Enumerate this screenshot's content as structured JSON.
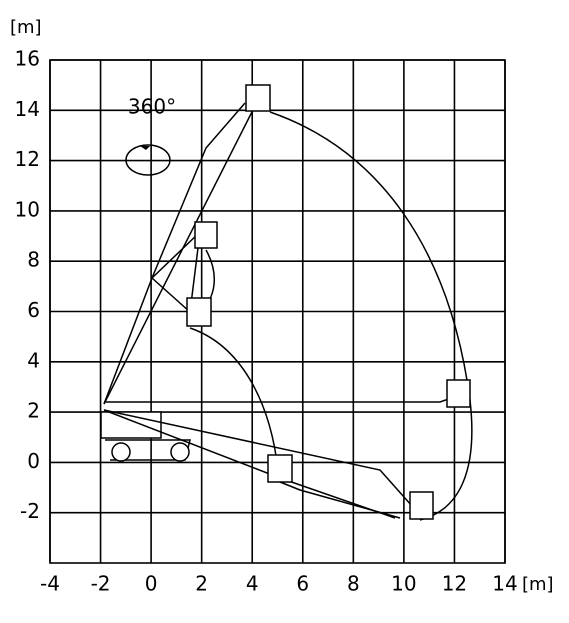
{
  "chart_data": {
    "type": "diagram",
    "annotation": "360°",
    "x_unit": "[m]",
    "y_unit": "[m]",
    "xlim": [
      -4,
      14
    ],
    "ylim": [
      -4,
      16
    ],
    "xticks": [
      -4,
      -2,
      0,
      2,
      4,
      6,
      8,
      10,
      12,
      14
    ],
    "yticks": [
      -2,
      0,
      2,
      4,
      6,
      8,
      10,
      12,
      14,
      16
    ],
    "grid": true
  }
}
